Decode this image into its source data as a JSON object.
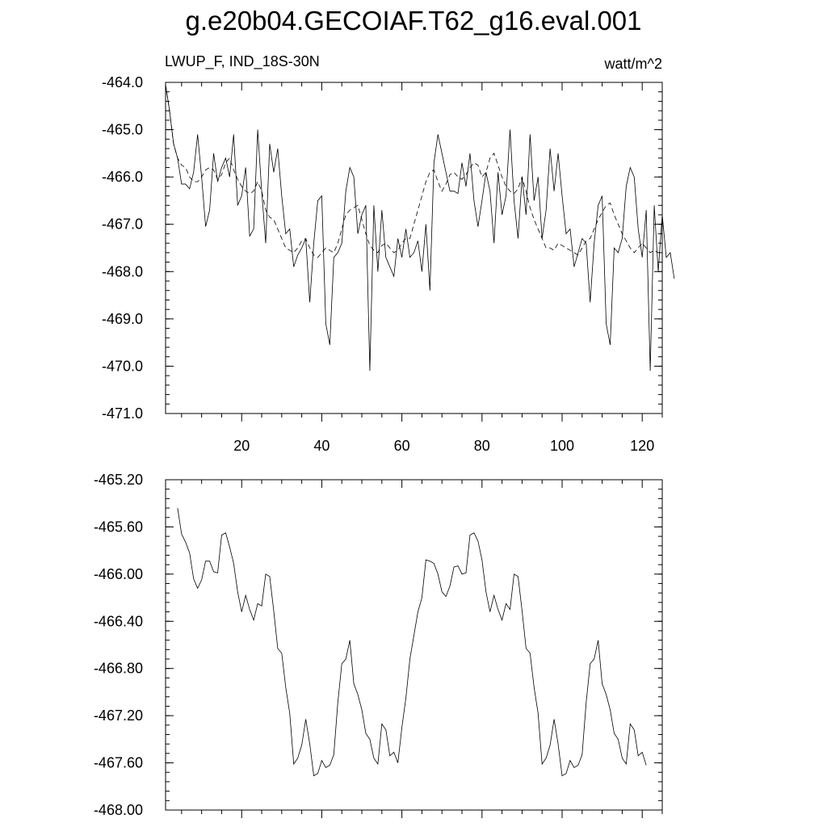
{
  "figure": {
    "title": "g.e20b04.GECOIAF.T62_g16.eval.001",
    "subtitle_left": "LWUP_F, IND_18S-30N",
    "units": "watt/m^2"
  },
  "chart_data": [
    {
      "type": "line",
      "panel": "top",
      "xlim": [
        1,
        125
      ],
      "ylim": [
        -471.0,
        -464.0
      ],
      "x_ticks": [
        20,
        40,
        60,
        80,
        100,
        120
      ],
      "x_tick_labels": [
        "20",
        "40",
        "60",
        "80",
        "100",
        "120"
      ],
      "y_ticks": [
        -464.0,
        -465.0,
        -466.0,
        -467.0,
        -468.0,
        -469.0,
        -470.0,
        -471.0
      ],
      "y_tick_labels": [
        "-464.0",
        "-465.0",
        "-466.0",
        "-467.0",
        "-468.0",
        "-469.0",
        "-470.0",
        "-471.0"
      ],
      "grid": false,
      "series": [
        {
          "style": "solid",
          "x_start": 1,
          "values": [
            -464.05,
            -464.6,
            -465.3,
            -465.6,
            -466.15,
            -466.15,
            -466.25,
            -465.9,
            -465.1,
            -466.0,
            -467.05,
            -466.7,
            -465.5,
            -466.1,
            -465.8,
            -465.6,
            -466.0,
            -465.1,
            -466.6,
            -466.4,
            -465.8,
            -467.25,
            -467.1,
            -465.0,
            -466.3,
            -467.4,
            -465.3,
            -465.9,
            -465.4,
            -466.4,
            -467.2,
            -467.1,
            -467.9,
            -467.65,
            -467.5,
            -467.3,
            -468.65,
            -467.4,
            -466.5,
            -466.4,
            -469.1,
            -469.55,
            -467.7,
            -467.6,
            -467.4,
            -466.3,
            -465.8,
            -466.0,
            -467.2,
            -466.8,
            -466.6,
            -470.1,
            -466.6,
            -468.0,
            -466.7,
            -467.7,
            -467.9,
            -468.1,
            -467.3,
            -467.7,
            -467.1,
            -467.7,
            -467.6,
            -467.35,
            -468.0,
            -467.0,
            -468.4,
            -465.7,
            -465.1,
            -465.5,
            -465.9,
            -466.3,
            -466.3,
            -466.35,
            -465.7,
            -466.2,
            -465.5,
            -466.5,
            -467.05,
            -466.5,
            -465.9,
            -466.3,
            -467.4,
            -465.9,
            -466.8,
            -466.4,
            -465.0,
            -466.5,
            -467.3,
            -466.0,
            -466.8,
            -465.1,
            -466.5,
            -466.0,
            -467.3,
            -466.7,
            -465.4,
            -466.3,
            -465.5,
            -466.4,
            -467.2,
            -467.1,
            -467.9,
            -467.6,
            -467.3,
            -467.4,
            -468.65,
            -467.4,
            -466.6,
            -466.4,
            -469.1,
            -469.55,
            -467.5,
            -467.6,
            -467.3,
            -466.2,
            -465.8,
            -466.0,
            -467.1,
            -467.7,
            -466.7,
            -470.1,
            -466.6,
            -468.0,
            -466.8,
            -467.7,
            -467.6,
            -468.15
          ]
        },
        {
          "style": "dashed",
          "x_start": 1,
          "values": [
            -464.05,
            -464.6,
            -465.3,
            -465.6,
            -465.75,
            -465.8,
            -466.0,
            -466.1,
            -466.1,
            -466.0,
            -465.85,
            -465.8,
            -465.85,
            -466.05,
            -465.95,
            -465.7,
            -465.6,
            -465.85,
            -466.05,
            -466.2,
            -466.3,
            -466.35,
            -466.3,
            -466.1,
            -466.3,
            -466.7,
            -466.85,
            -466.9,
            -467.1,
            -467.3,
            -467.5,
            -467.55,
            -467.6,
            -467.5,
            -467.35,
            -467.3,
            -467.5,
            -467.65,
            -467.7,
            -467.6,
            -467.5,
            -467.55,
            -467.6,
            -467.4,
            -467.1,
            -466.8,
            -466.7,
            -466.65,
            -466.6,
            -466.9,
            -467.2,
            -467.45,
            -467.55,
            -467.6,
            -467.45,
            -467.4,
            -467.5,
            -467.6,
            -467.55,
            -467.4,
            -467.3,
            -467.3,
            -467.0,
            -466.7,
            -466.4,
            -466.1,
            -465.9,
            -465.85,
            -466.1,
            -466.3,
            -466.15,
            -465.95,
            -465.9,
            -466.0,
            -466.05,
            -465.95,
            -465.8,
            -465.7,
            -465.75,
            -466.0,
            -465.9,
            -465.6,
            -465.5,
            -465.75,
            -466.0,
            -466.2,
            -466.3,
            -466.35,
            -466.25,
            -466.0,
            -466.3,
            -466.65,
            -466.9,
            -467.1,
            -467.3,
            -467.5,
            -467.5,
            -467.55,
            -467.4,
            -467.45,
            -467.5,
            -467.55,
            -467.6,
            -467.65,
            -467.5,
            -467.35,
            -467.3,
            -467.1,
            -466.9,
            -466.75,
            -466.6,
            -466.55,
            -466.8,
            -467.0,
            -467.2,
            -467.35,
            -467.5,
            -467.6,
            -467.5,
            -467.4,
            -467.5,
            -467.6,
            -467.55,
            -467.6
          ]
        }
      ]
    },
    {
      "type": "line",
      "panel": "bottom",
      "xlim": [
        1,
        125
      ],
      "ylim": [
        -468.0,
        -465.2
      ],
      "x_ticks": [
        20,
        40,
        60,
        80,
        100,
        120
      ],
      "x_tick_labels": [],
      "y_ticks": [
        -465.2,
        -465.6,
        -466.0,
        -466.4,
        -466.8,
        -467.2,
        -467.6,
        -468.0
      ],
      "y_tick_labels": [
        "-465.20",
        "-465.60",
        "-466.00",
        "-466.40",
        "-466.80",
        "-467.20",
        "-467.60",
        "-468.00"
      ],
      "grid": false,
      "series": [
        {
          "style": "solid",
          "x_start": 4,
          "values": [
            -465.44,
            -465.66,
            -465.73,
            -465.82,
            -466.04,
            -466.12,
            -466.05,
            -465.89,
            -465.89,
            -465.98,
            -465.99,
            -465.67,
            -465.65,
            -465.77,
            -465.91,
            -466.15,
            -466.32,
            -466.18,
            -466.3,
            -466.39,
            -466.25,
            -466.27,
            -466.0,
            -466.02,
            -466.31,
            -466.63,
            -466.67,
            -466.96,
            -467.18,
            -467.61,
            -467.56,
            -467.45,
            -467.23,
            -467.44,
            -467.71,
            -467.69,
            -467.58,
            -467.64,
            -467.62,
            -467.53,
            -467.09,
            -466.76,
            -466.72,
            -466.56,
            -466.93,
            -467.02,
            -467.15,
            -467.35,
            -467.4,
            -467.56,
            -467.61,
            -467.27,
            -467.32,
            -467.54,
            -467.51,
            -467.6,
            -467.3,
            -467.05,
            -466.72,
            -466.52,
            -466.32,
            -466.2,
            -465.88,
            -465.89,
            -465.91,
            -466.0,
            -466.15,
            -466.19,
            -466.1,
            -465.94,
            -465.93,
            -466.0,
            -465.99,
            -465.67,
            -465.65,
            -465.72,
            -465.88,
            -466.15,
            -466.32,
            -466.18,
            -466.3,
            -466.39,
            -466.25,
            -466.3,
            -466.0,
            -466.02,
            -466.31,
            -466.63,
            -466.67,
            -466.96,
            -467.18,
            -467.61,
            -467.56,
            -467.45,
            -467.23,
            -467.44,
            -467.71,
            -467.69,
            -467.58,
            -467.64,
            -467.62,
            -467.53,
            -467.09,
            -466.76,
            -466.72,
            -466.56,
            -466.93,
            -467.02,
            -467.15,
            -467.35,
            -467.4,
            -467.56,
            -467.61,
            -467.27,
            -467.32,
            -467.54,
            -467.51,
            -467.62
          ]
        }
      ]
    }
  ]
}
